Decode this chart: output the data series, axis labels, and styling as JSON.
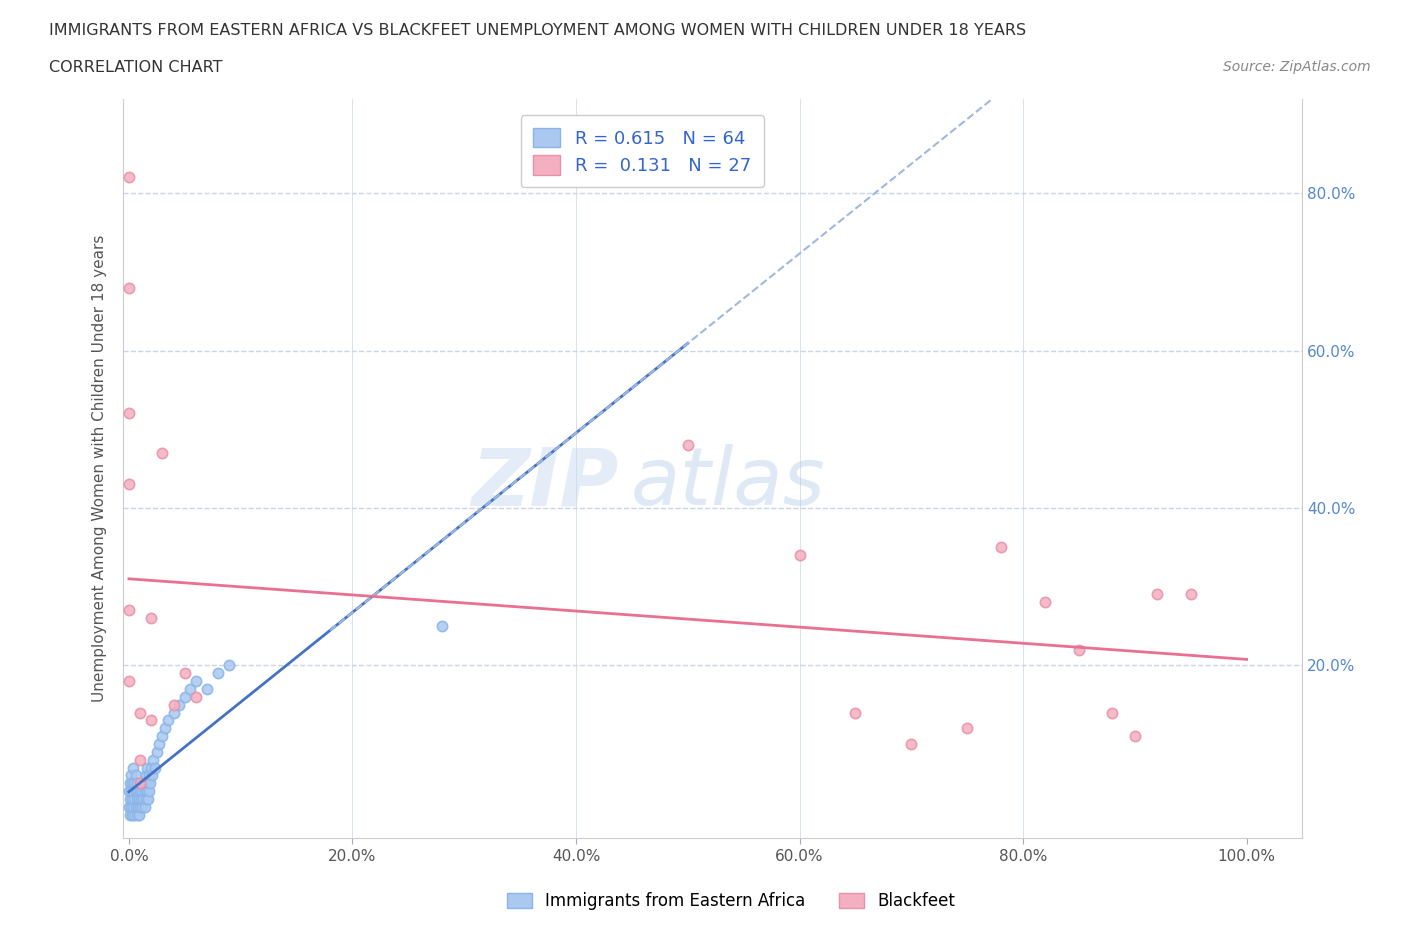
{
  "title_line1": "IMMIGRANTS FROM EASTERN AFRICA VS BLACKFEET UNEMPLOYMENT AMONG WOMEN WITH CHILDREN UNDER 18 YEARS",
  "title_line2": "CORRELATION CHART",
  "source": "Source: ZipAtlas.com",
  "ylabel": "Unemployment Among Women with Children Under 18 years",
  "xlim": [
    -0.005,
    1.05
  ],
  "ylim": [
    -0.02,
    0.92
  ],
  "xticks": [
    0.0,
    0.2,
    0.4,
    0.6,
    0.8,
    1.0
  ],
  "xtick_labels": [
    "0.0%",
    "20.0%",
    "40.0%",
    "60.0%",
    "80.0%",
    "100.0%"
  ],
  "yticks": [
    0.0,
    0.2,
    0.4,
    0.6,
    0.8
  ],
  "ytick_labels_right": [
    "",
    "20.0%",
    "40.0%",
    "60.0%",
    "80.0%"
  ],
  "blue_color": "#8ab4e8",
  "blue_face": "#aac8f0",
  "pink_color": "#e890a8",
  "pink_face": "#f4b0c0",
  "trend_blue_solid_color": "#4472c4",
  "trend_blue_dash_color": "#a0b8e0",
  "trend_pink_color": "#e87090",
  "legend_blue_label": "Immigrants from Eastern Africa",
  "legend_pink_label": "Blackfeet",
  "R_blue": 0.615,
  "N_blue": 64,
  "R_pink": 0.131,
  "N_pink": 27,
  "blue_x": [
    0.0,
    0.0,
    0.001,
    0.001,
    0.001,
    0.002,
    0.002,
    0.002,
    0.003,
    0.003,
    0.003,
    0.004,
    0.004,
    0.004,
    0.005,
    0.005,
    0.005,
    0.006,
    0.006,
    0.006,
    0.007,
    0.007,
    0.007,
    0.008,
    0.008,
    0.009,
    0.009,
    0.01,
    0.01,
    0.011,
    0.011,
    0.012,
    0.012,
    0.013,
    0.013,
    0.014,
    0.014,
    0.015,
    0.015,
    0.016,
    0.016,
    0.017,
    0.017,
    0.018,
    0.018,
    0.019,
    0.02,
    0.021,
    0.022,
    0.023,
    0.025,
    0.027,
    0.03,
    0.032,
    0.035,
    0.04,
    0.045,
    0.05,
    0.055,
    0.06,
    0.07,
    0.08,
    0.09,
    0.28
  ],
  "blue_y": [
    0.02,
    0.04,
    0.01,
    0.03,
    0.05,
    0.02,
    0.04,
    0.06,
    0.01,
    0.03,
    0.05,
    0.02,
    0.04,
    0.07,
    0.01,
    0.03,
    0.05,
    0.02,
    0.04,
    0.06,
    0.01,
    0.03,
    0.05,
    0.02,
    0.04,
    0.01,
    0.03,
    0.02,
    0.04,
    0.03,
    0.05,
    0.02,
    0.04,
    0.03,
    0.05,
    0.02,
    0.04,
    0.03,
    0.06,
    0.04,
    0.07,
    0.03,
    0.05,
    0.04,
    0.06,
    0.05,
    0.07,
    0.06,
    0.08,
    0.07,
    0.09,
    0.1,
    0.11,
    0.12,
    0.13,
    0.14,
    0.15,
    0.16,
    0.17,
    0.18,
    0.17,
    0.19,
    0.2,
    0.25
  ],
  "pink_x": [
    0.0,
    0.0,
    0.0,
    0.0,
    0.0,
    0.0,
    0.01,
    0.01,
    0.01,
    0.02,
    0.02,
    0.03,
    0.04,
    0.05,
    0.06,
    0.5,
    0.6,
    0.65,
    0.7,
    0.75,
    0.78,
    0.82,
    0.85,
    0.88,
    0.9,
    0.92,
    0.95
  ],
  "pink_y": [
    0.82,
    0.68,
    0.52,
    0.43,
    0.27,
    0.18,
    0.14,
    0.08,
    0.05,
    0.26,
    0.13,
    0.47,
    0.15,
    0.19,
    0.16,
    0.48,
    0.34,
    0.14,
    0.1,
    0.12,
    0.35,
    0.28,
    0.22,
    0.14,
    0.11,
    0.29,
    0.29
  ],
  "watermark_zip": "ZIP",
  "watermark_atlas": "atlas",
  "background_color": "#ffffff",
  "grid_color": "#c8d4e8",
  "marker_size": 55
}
